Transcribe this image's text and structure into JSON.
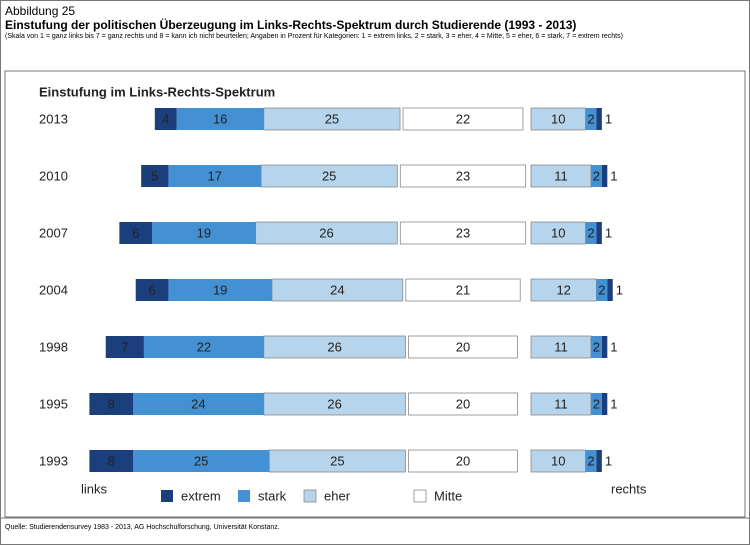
{
  "chart_data": {
    "type": "bar",
    "figure_label": "Abbildung 25",
    "title": "Einstufung der politischen Überzeugung im Links-Rechts-Spektrum durch Studierende (1993 - 2013)",
    "subtitle": "(Skala von 1 = ganz links bis 7 = ganz rechts und 8 = kann ich nicht beurteilen; Angaben in Prozent für Kategorien: 1 = extrem links, 2 = stark, 3 = eher, 4 = Mitte, 5 = eher, 6 = stark, 7 = extrem rechts)",
    "panel_title": "Einstufung im Links-Rechts-Spektrum",
    "left_label": "links",
    "right_label": "rechts",
    "source": "Quelle: Studierendensurvey 1983 - 2013, AG Hochschulforschung, Universität Konstanz.",
    "categories": [
      "2013",
      "2010",
      "2007",
      "2004",
      "1998",
      "1995",
      "1993"
    ],
    "series": [
      {
        "name": "extrem",
        "color": "#1b3f7c",
        "values": [
          4,
          5,
          6,
          6,
          7,
          8,
          8
        ]
      },
      {
        "name": "stark",
        "color": "#4390d2",
        "values": [
          16,
          17,
          19,
          19,
          22,
          24,
          25
        ]
      },
      {
        "name": "eher",
        "color": "#b6d4eb",
        "values": [
          25,
          25,
          26,
          24,
          26,
          26,
          25
        ]
      },
      {
        "name": "Mitte",
        "color": "#ffffff",
        "values": [
          22,
          23,
          23,
          21,
          20,
          20,
          20
        ]
      },
      {
        "color": "#b6d4eb",
        "values": [
          10,
          11,
          10,
          12,
          11,
          11,
          10
        ]
      },
      {
        "color": "#4390d2",
        "values": [
          2,
          2,
          2,
          2,
          2,
          2,
          2
        ]
      },
      {
        "color": "#1b3f7c",
        "values": [
          1,
          1,
          1,
          1,
          1,
          1,
          1
        ]
      }
    ]
  }
}
